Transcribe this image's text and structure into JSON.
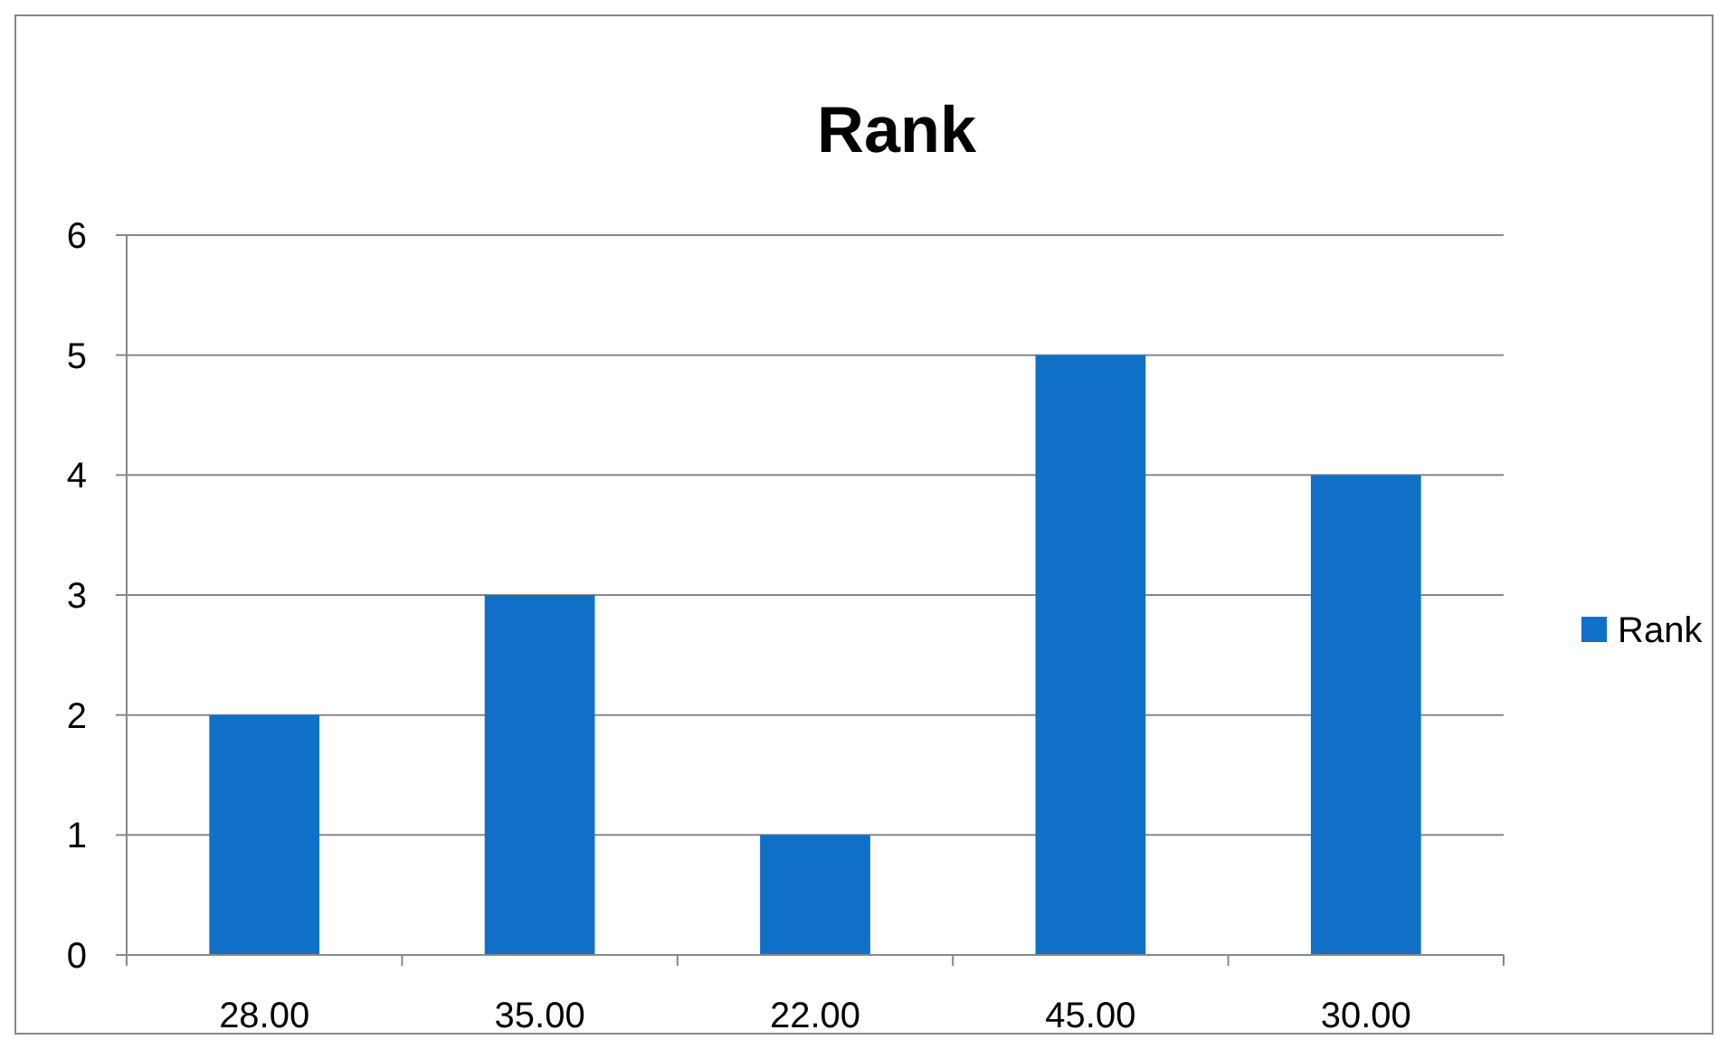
{
  "chart_data": {
    "type": "bar",
    "title": "Rank",
    "categories": [
      "28.00",
      "35.00",
      "22.00",
      "45.00",
      "30.00"
    ],
    "series": [
      {
        "name": "Rank",
        "color": "#1070c8",
        "values": [
          2,
          3,
          1,
          5,
          4
        ]
      }
    ],
    "ylim": [
      0,
      6
    ],
    "yticks": [
      0,
      1,
      2,
      3,
      4,
      5,
      6
    ],
    "grid": "y",
    "legend": "right"
  }
}
